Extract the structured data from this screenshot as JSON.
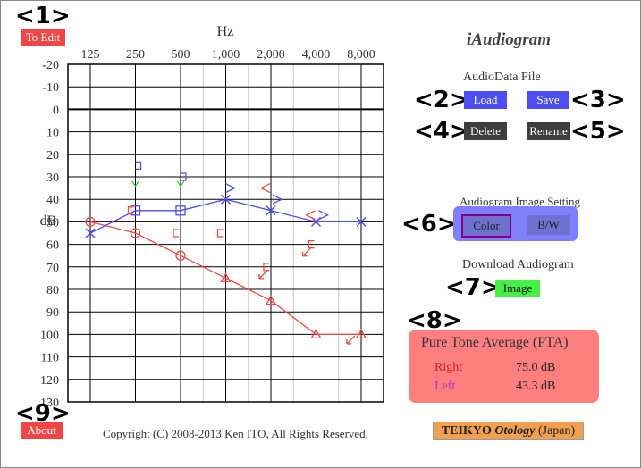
{
  "app": {
    "title": "iAudiogram",
    "copyright": "Copyright (C) 2008-2013 Ken ITO, All Rights Reserved."
  },
  "callouts": [
    "<1>",
    "<2>",
    "<3>",
    "<4>",
    "<5>",
    "<6>",
    "<7>",
    "<8>",
    "<9>"
  ],
  "buttons": {
    "to_edit": "To Edit",
    "load": "Load",
    "save": "Save",
    "delete": "Delete",
    "rename": "Rename",
    "color": "Color",
    "bw": "B/W",
    "image": "Image",
    "about": "About"
  },
  "sections": {
    "audiodata_file": "AudioData File",
    "image_setting": "Audiogram Image Setting",
    "download": "Download Audiogram"
  },
  "pta": {
    "title": "Pure Tone Average (PTA)",
    "right_label": "Right",
    "right_value": "75.0 dB",
    "left_label": "Left",
    "left_value": "43.3 dB"
  },
  "teikyo": {
    "brand": "TEIKYO",
    "italic": "Otology",
    "suffix": "(Japan)"
  },
  "colors": {
    "right": "#f04646",
    "left": "#4d4df0",
    "left_label": "#cc44cc",
    "masking": "#46c846",
    "grid": "#000000",
    "grid_minor": "#c8c8c8"
  },
  "chart_data": {
    "type": "line",
    "xlabel": "Hz",
    "ylabel": "dB",
    "x_ticks": [
      "125",
      "250",
      "500",
      "1,000",
      "2,000",
      "4,000",
      "8,000"
    ],
    "y_ticks": [
      "-20",
      "-10",
      "0",
      "10",
      "20",
      "30",
      "40",
      "50",
      "60",
      "70",
      "80",
      "90",
      "100",
      "110",
      "120",
      "130"
    ],
    "ylim": [
      -20,
      130
    ],
    "series": [
      {
        "freqs": [
          125,
          250,
          500
        ],
        "values": [
          50,
          55,
          65
        ],
        "marker": "circle",
        "color": "#f04646"
      },
      {
        "freqs": [
          500,
          1000,
          2000,
          4000,
          8000
        ],
        "values": [
          65,
          75,
          85,
          100,
          100
        ],
        "marker": "triangle",
        "color": "#f04646"
      },
      {
        "freqs": [
          125,
          250,
          500,
          1000,
          2000,
          4000,
          8000
        ],
        "values": [
          55,
          45,
          45,
          40,
          45,
          50,
          50
        ],
        "marker": "mixed",
        "color": "#4d4df0"
      }
    ]
  }
}
